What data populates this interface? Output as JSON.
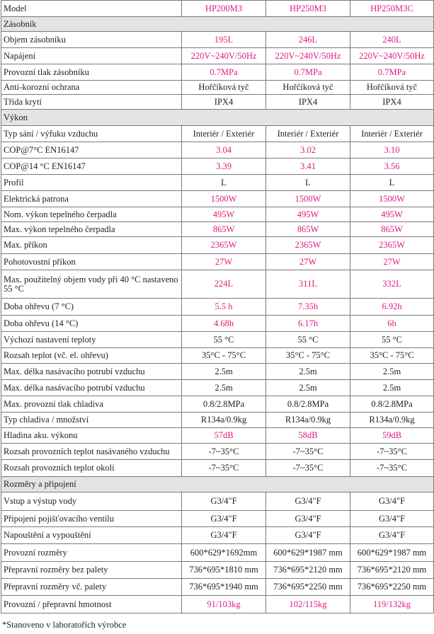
{
  "header": {
    "label": "Model",
    "models": [
      "HP200M3",
      "HP250M3",
      "HP250M3C"
    ]
  },
  "colors": {
    "accent": "#e0197d",
    "section_bg": "#e4e4e4",
    "border": "#7a7a7a"
  },
  "rows": [
    {
      "type": "section",
      "label": "Zásobník"
    },
    {
      "label": "Objem zásobníku",
      "values": [
        "195L",
        "246L",
        "240L"
      ],
      "color": "pink"
    },
    {
      "label": "Napájení",
      "values": [
        "220V~240V/50Hz",
        "220V~240V/50Hz",
        "220V~240V/50Hz"
      ],
      "color": "pink"
    },
    {
      "label": "Provozní tlak zásobníku",
      "values": [
        "0.7MPa",
        "0.7MPa",
        "0.7MPa"
      ],
      "color": "pink"
    },
    {
      "label": "Anti-korozní ochrana",
      "values": [
        "Hořčíková tyč",
        "Hořčíková tyč",
        "Hořčíková tyč"
      ],
      "color": "dark"
    },
    {
      "label": "Třída krytí",
      "values": [
        "IPX4",
        "IPX4",
        "IPX4"
      ],
      "color": "dark"
    },
    {
      "type": "section",
      "label": "Výkon"
    },
    {
      "label": "Typ sání / výfuku vzduchu",
      "values": [
        "Interiér / Exteriér",
        "Interiér / Exteriér",
        "Interiér / Exteriér"
      ],
      "color": "dark"
    },
    {
      "label": "COP@7°C     EN16147",
      "values": [
        "3.04",
        "3.02",
        "3.10"
      ],
      "color": "pink"
    },
    {
      "label": "COP@14 °C   EN16147",
      "values": [
        "3.39",
        "3.41",
        "3.56"
      ],
      "color": "pink"
    },
    {
      "label": "Profil",
      "values": [
        "L",
        "L",
        "L"
      ],
      "color": "dark"
    },
    {
      "label": "Elektrická patrona",
      "values": [
        "1500W",
        "1500W",
        "1500W"
      ],
      "color": "pink"
    },
    {
      "label": "Nom. výkon tepelného čerpadla",
      "values": [
        "495W",
        "495W",
        "495W"
      ],
      "color": "pink"
    },
    {
      "label": "Max. výkon tepelného čerpadla",
      "values": [
        "865W",
        "865W",
        "865W"
      ],
      "color": "pink"
    },
    {
      "label": "Max. příkon",
      "values": [
        "2365W",
        "2365W",
        "2365W"
      ],
      "color": "pink"
    },
    {
      "label": "Pohotovostní příkon",
      "values": [
        "27W",
        "27W",
        "27W"
      ],
      "color": "pink"
    },
    {
      "label": "Max. použitelný objem vody při 40 °C nastaveno 55 °C",
      "values": [
        "224L",
        "311L",
        "332L"
      ],
      "color": "pink"
    },
    {
      "label": "Doba ohřevu (7 °C)",
      "values": [
        "5.5 h",
        "7.35h",
        "6.92h"
      ],
      "color": "pink"
    },
    {
      "label": "Doba ohřevu (14 °C)",
      "values": [
        "4.68h",
        "6.17h",
        "6h"
      ],
      "color": "pink"
    },
    {
      "label": "Výchozí nastavení teploty",
      "values": [
        "55 °C",
        "55 °C",
        "55 °C"
      ],
      "color": "dark"
    },
    {
      "label": "Rozsah teplot (vč. el. ohřevu)",
      "values": [
        "35°C - 75°C",
        "35°C - 75°C",
        "35°C - 75°C"
      ],
      "color": "dark"
    },
    {
      "label": "Max. délka nasávacího potrubí vzduchu",
      "values": [
        "2.5m",
        "2.5m",
        "2.5m"
      ],
      "color": "dark"
    },
    {
      "label": "Max. délka nasávacího potrubí vzduchu",
      "values": [
        "2.5m",
        "2.5m",
        "2.5m"
      ],
      "color": "dark"
    },
    {
      "label": "Max. provozní tlak chladiva",
      "values": [
        "0.8/2.8MPa",
        "0.8/2.8MPa",
        "0.8/2.8MPa"
      ],
      "color": "dark"
    },
    {
      "label": "Typ chladiva / množství",
      "values": [
        "R134a/0.9kg",
        "R134a/0.9kg",
        "R134a/0.9kg"
      ],
      "color": "dark"
    },
    {
      "label": "Hladina aku. výkonu",
      "values": [
        "57dB",
        "58dB",
        "59dB"
      ],
      "color": "pink"
    },
    {
      "label": "Rozsah provozních teplot nasávaného vzduchu",
      "values": [
        "-7~35°C",
        "-7~35°C",
        "-7~35°C"
      ],
      "color": "dark"
    },
    {
      "label": "Rozsah provozních teplot okolí",
      "values": [
        "-7~35°C",
        "-7~35°C",
        "-7~35°C"
      ],
      "color": "dark"
    },
    {
      "type": "section",
      "label": "Rozměry a připojení"
    },
    {
      "label": "Vstup a výstup vody",
      "values": [
        "G3/4\"F",
        "G3/4\"F",
        "G3/4\"F"
      ],
      "color": "dark"
    },
    {
      "label": "Připojení pojišťovacího ventilu",
      "values": [
        "G3/4\"F",
        "G3/4\"F",
        "G3/4\"F"
      ],
      "color": "dark"
    },
    {
      "label": "Napouštění a vypouštění",
      "values": [
        "G3/4\"F",
        "G3/4\"F",
        "G3/4\"F"
      ],
      "color": "dark"
    },
    {
      "label": "Provozní rozměry",
      "values": [
        "600*629*1692mm",
        "600*629*1987 mm",
        "600*629*1987 mm"
      ],
      "color": "dark"
    },
    {
      "label": "Přepravní rozměry bez palety",
      "values": [
        "736*695*1810 mm",
        "736*695*2120 mm",
        "736*695*2120 mm"
      ],
      "color": "dark"
    },
    {
      "label": "Přepravní rozměry vč. palety",
      "values": [
        "736*695*1940 mm",
        "736*695*2250 mm",
        "736*695*2250 mm"
      ],
      "color": "dark"
    },
    {
      "label": "Provozní / přepravní hmotnost",
      "values": [
        "91/103kg",
        "102/115kg",
        "119/132kg"
      ],
      "color": "pink"
    }
  ],
  "footnote": "*Stanoveno v laboratořích výrobce"
}
